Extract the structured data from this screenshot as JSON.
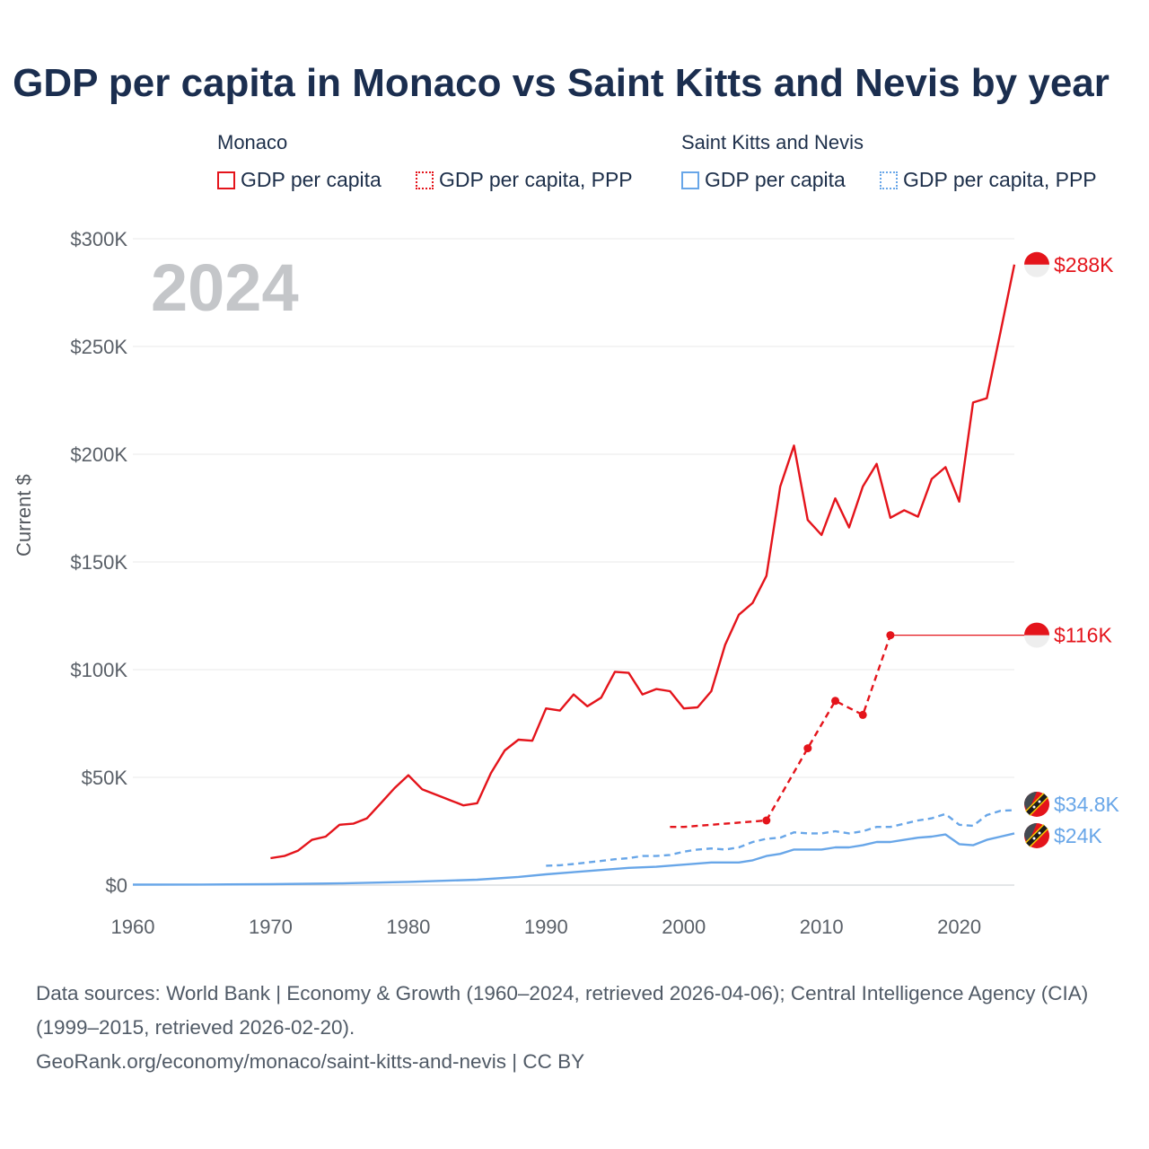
{
  "title": "GDP per capita in Monaco vs Saint Kitts and Nevis by year",
  "legend": {
    "groups": [
      {
        "name": "Monaco",
        "color": "#e4141b",
        "items": [
          {
            "label": "GDP per capita",
            "style": "solid"
          },
          {
            "label": "GDP per capita, PPP",
            "style": "dotted"
          }
        ]
      },
      {
        "name": "Saint Kitts and Nevis",
        "color": "#68a6e8",
        "items": [
          {
            "label": "GDP per capita",
            "style": "solid"
          },
          {
            "label": "GDP per capita, PPP",
            "style": "dotted"
          }
        ]
      }
    ]
  },
  "year_label": "2024",
  "y_axis_label": "Current $",
  "footer": {
    "sources": "Data sources: World Bank | Economy & Growth (1960–2024, retrieved 2026-04-06); Central Intelligence Agency (CIA) (1999–2015, retrieved 2026-02-20).",
    "link": "GeoRank.org/economy/monaco/saint-kitts-and-nevis | CC BY"
  },
  "chart_data": {
    "type": "line",
    "x_range": [
      1960,
      2024
    ],
    "ylim": [
      0,
      300000
    ],
    "y_ticks": [
      0,
      50000,
      100000,
      150000,
      200000,
      250000,
      300000
    ],
    "y_tick_labels": [
      "$0",
      "$50K",
      "$100K",
      "$150K",
      "$200K",
      "$250K",
      "$300K"
    ],
    "x_ticks": [
      1960,
      1970,
      1980,
      1990,
      2000,
      2010,
      2020
    ],
    "x_tick_labels": [
      "1960",
      "1970",
      "1980",
      "1990",
      "2000",
      "2010",
      "2020"
    ],
    "grid": true,
    "series": [
      {
        "name": "Monaco GDP per capita",
        "color": "#e4141b",
        "style": "solid",
        "end_label": "$288K",
        "points": [
          [
            1970,
            12500
          ],
          [
            1971,
            13500
          ],
          [
            1972,
            16000
          ],
          [
            1973,
            21000
          ],
          [
            1974,
            22500
          ],
          [
            1975,
            28000
          ],
          [
            1976,
            28500
          ],
          [
            1977,
            31000
          ],
          [
            1978,
            38000
          ],
          [
            1979,
            45000
          ],
          [
            1980,
            51000
          ],
          [
            1981,
            44500
          ],
          [
            1982,
            42000
          ],
          [
            1983,
            39500
          ],
          [
            1984,
            37000
          ],
          [
            1985,
            38000
          ],
          [
            1986,
            52000
          ],
          [
            1987,
            62500
          ],
          [
            1988,
            67500
          ],
          [
            1989,
            67000
          ],
          [
            1990,
            82000
          ],
          [
            1991,
            81000
          ],
          [
            1992,
            88500
          ],
          [
            1993,
            83000
          ],
          [
            1994,
            87000
          ],
          [
            1995,
            99000
          ],
          [
            1996,
            98500
          ],
          [
            1997,
            88500
          ],
          [
            1998,
            91000
          ],
          [
            1999,
            90000
          ],
          [
            2000,
            82000
          ],
          [
            2001,
            82500
          ],
          [
            2002,
            90000
          ],
          [
            2003,
            111500
          ],
          [
            2004,
            125500
          ],
          [
            2005,
            131000
          ],
          [
            2006,
            143500
          ],
          [
            2007,
            185000
          ],
          [
            2008,
            204000
          ],
          [
            2009,
            169500
          ],
          [
            2010,
            162500
          ],
          [
            2011,
            179500
          ],
          [
            2012,
            166000
          ],
          [
            2013,
            185000
          ],
          [
            2014,
            195500
          ],
          [
            2015,
            170500
          ],
          [
            2016,
            174000
          ],
          [
            2017,
            171000
          ],
          [
            2018,
            188500
          ],
          [
            2019,
            194000
          ],
          [
            2020,
            178000
          ],
          [
            2021,
            224000
          ],
          [
            2022,
            226000
          ],
          [
            2023,
            257000
          ],
          [
            2024,
            288000
          ]
        ]
      },
      {
        "name": "Monaco GDP per capita, PPP",
        "color": "#e4141b",
        "style": "dashed",
        "end_label": "$116K",
        "points": [
          [
            1999,
            27000
          ],
          [
            2000,
            27000
          ],
          [
            2006,
            30000
          ],
          [
            2009,
            63500
          ],
          [
            2011,
            85500
          ],
          [
            2013,
            79000
          ],
          [
            2015,
            116000
          ]
        ],
        "markers": [
          2006,
          2009,
          2011,
          2013,
          2015
        ],
        "extend_to": 2024
      },
      {
        "name": "Saint Kitts and Nevis GDP per capita, PPP",
        "color": "#68a6e8",
        "style": "dashed",
        "end_label": "$34.8K",
        "points": [
          [
            1990,
            9000
          ],
          [
            1991,
            9200
          ],
          [
            1992,
            9800
          ],
          [
            1993,
            10500
          ],
          [
            1994,
            11200
          ],
          [
            1995,
            12000
          ],
          [
            1996,
            12500
          ],
          [
            1997,
            13500
          ],
          [
            1998,
            13500
          ],
          [
            1999,
            14000
          ],
          [
            2000,
            15500
          ],
          [
            2001,
            16500
          ],
          [
            2002,
            17000
          ],
          [
            2003,
            16500
          ],
          [
            2004,
            17500
          ],
          [
            2005,
            20000
          ],
          [
            2006,
            21500
          ],
          [
            2007,
            22000
          ],
          [
            2008,
            24500
          ],
          [
            2009,
            24000
          ],
          [
            2010,
            24000
          ],
          [
            2011,
            25000
          ],
          [
            2012,
            24000
          ],
          [
            2013,
            25000
          ],
          [
            2014,
            27000
          ],
          [
            2015,
            27000
          ],
          [
            2016,
            28500
          ],
          [
            2017,
            30000
          ],
          [
            2018,
            31000
          ],
          [
            2019,
            33000
          ],
          [
            2020,
            28000
          ],
          [
            2021,
            27500
          ],
          [
            2022,
            32500
          ],
          [
            2023,
            34500
          ],
          [
            2024,
            34800
          ]
        ]
      },
      {
        "name": "Saint Kitts and Nevis GDP per capita",
        "color": "#68a6e8",
        "style": "solid",
        "end_label": "$24K",
        "points": [
          [
            1960,
            200
          ],
          [
            1965,
            250
          ],
          [
            1970,
            400
          ],
          [
            1975,
            800
          ],
          [
            1980,
            1500
          ],
          [
            1985,
            2500
          ],
          [
            1988,
            3800
          ],
          [
            1990,
            5000
          ],
          [
            1992,
            6000
          ],
          [
            1994,
            7000
          ],
          [
            1996,
            8000
          ],
          [
            1998,
            8500
          ],
          [
            2000,
            9500
          ],
          [
            2002,
            10500
          ],
          [
            2004,
            10500
          ],
          [
            2005,
            11500
          ],
          [
            2006,
            13500
          ],
          [
            2007,
            14500
          ],
          [
            2008,
            16500
          ],
          [
            2009,
            16500
          ],
          [
            2010,
            16500
          ],
          [
            2011,
            17500
          ],
          [
            2012,
            17500
          ],
          [
            2013,
            18500
          ],
          [
            2014,
            20000
          ],
          [
            2015,
            20000
          ],
          [
            2016,
            21000
          ],
          [
            2017,
            22000
          ],
          [
            2018,
            22500
          ],
          [
            2019,
            23500
          ],
          [
            2020,
            19000
          ],
          [
            2021,
            18500
          ],
          [
            2022,
            21000
          ],
          [
            2023,
            22500
          ],
          [
            2024,
            24000
          ]
        ]
      }
    ]
  }
}
